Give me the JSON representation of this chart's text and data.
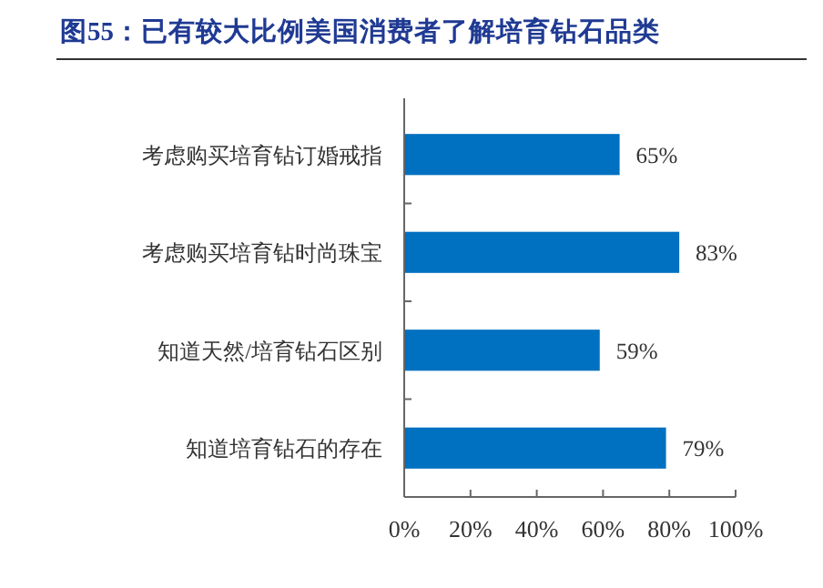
{
  "chart_data": {
    "type": "bar",
    "orientation": "horizontal",
    "title": "图55：已有较大比例美国消费者了解培育钻石品类",
    "categories": [
      "考虑购买培育钻订婚戒指",
      "考虑购买培育钻时尚珠宝",
      "知道天然/培育钻石区别",
      "知道培育钻石的存在"
    ],
    "values": [
      65,
      83,
      59,
      79
    ],
    "color": "#0070c0",
    "value_labels": [
      "65%",
      "83%",
      "59%",
      "79%"
    ],
    "xlim": [
      0,
      100
    ],
    "xticks": [
      {
        "value": 0,
        "label": "0%"
      },
      {
        "value": 20,
        "label": "20%"
      },
      {
        "value": 40,
        "label": "40%"
      },
      {
        "value": 60,
        "label": "60%"
      },
      {
        "value": 80,
        "label": "80%"
      },
      {
        "value": 100,
        "label": "100%"
      }
    ],
    "grid": false
  }
}
